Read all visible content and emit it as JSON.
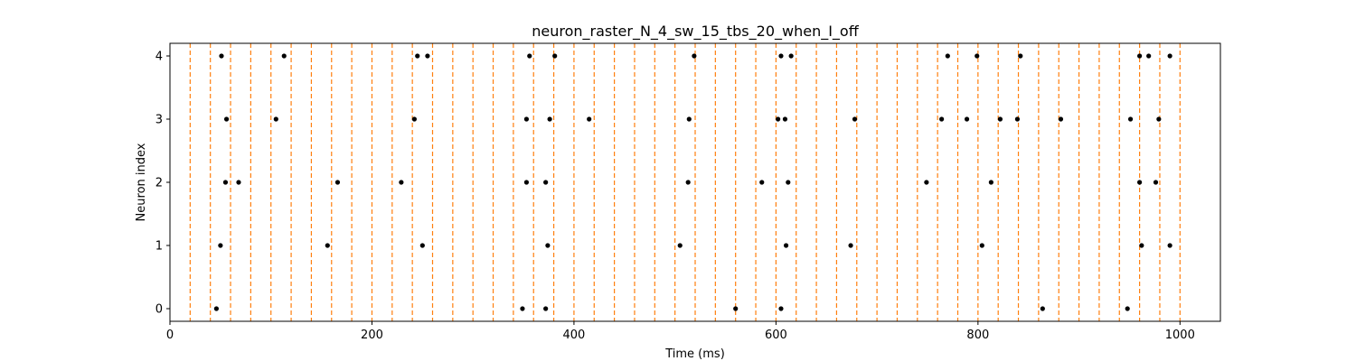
{
  "chart_data": {
    "type": "scatter",
    "title": "neuron_raster_N_4_sw_15_tbs_20_when_I_off",
    "xlabel": "Time (ms)",
    "ylabel": "Neuron index",
    "xlim": [
      0,
      1040
    ],
    "ylim": [
      -0.2,
      4.2
    ],
    "x_ticks": [
      0,
      200,
      400,
      600,
      800,
      1000
    ],
    "x_tick_labels": [
      "0",
      "200",
      "400",
      "600",
      "800",
      "1000"
    ],
    "y_ticks": [
      0,
      1,
      2,
      3,
      4
    ],
    "y_tick_labels": [
      "0",
      "1",
      "2",
      "3",
      "4"
    ],
    "grid": false,
    "point_color": "#000000",
    "vline_color": "#ff7f0e",
    "vlines": [
      20,
      40,
      60,
      80,
      100,
      120,
      140,
      160,
      180,
      200,
      220,
      240,
      260,
      280,
      300,
      320,
      340,
      360,
      380,
      400,
      420,
      440,
      460,
      480,
      500,
      520,
      540,
      560,
      580,
      600,
      620,
      640,
      660,
      680,
      700,
      720,
      740,
      760,
      780,
      800,
      820,
      840,
      860,
      880,
      900,
      920,
      940,
      960,
      980,
      1000
    ],
    "spikes": [
      {
        "neuron": 0,
        "times": [
          46,
          349,
          372,
          560,
          605,
          864,
          948
        ]
      },
      {
        "neuron": 1,
        "times": [
          50,
          156,
          250,
          374,
          505,
          610,
          674,
          804,
          962,
          990
        ]
      },
      {
        "neuron": 2,
        "times": [
          55,
          68,
          166,
          229,
          353,
          372,
          513,
          586,
          612,
          749,
          813,
          960,
          976
        ]
      },
      {
        "neuron": 3,
        "times": [
          56,
          105,
          242,
          353,
          376,
          415,
          514,
          602,
          609,
          678,
          764,
          789,
          822,
          839,
          882,
          951,
          979
        ]
      },
      {
        "neuron": 4,
        "times": [
          51,
          113,
          245,
          255,
          356,
          381,
          519,
          605,
          615,
          770,
          799,
          842,
          960,
          969,
          990
        ]
      }
    ]
  }
}
